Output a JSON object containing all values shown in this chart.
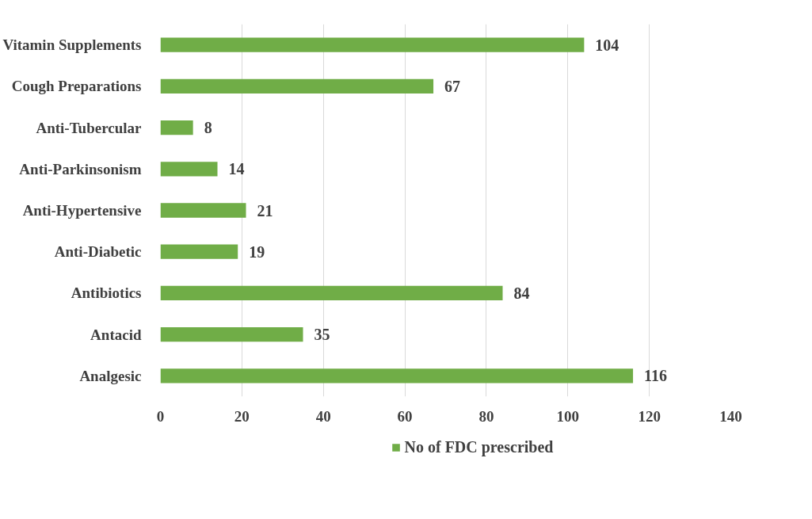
{
  "chart_data": {
    "type": "bar",
    "orientation": "horizontal",
    "categories": [
      "Vitamin Supplements",
      "Cough Preparations",
      "Anti-Tubercular",
      "Anti-Parkinsonism",
      "Anti-Hypertensive",
      "Anti-Diabetic",
      "Antibiotics",
      "Antacid",
      "Analgesic"
    ],
    "series": [
      {
        "name": "No of FDC prescribed",
        "color": "#70ad47",
        "values": [
          104,
          67,
          8,
          14,
          21,
          19,
          84,
          35,
          116
        ]
      }
    ],
    "xlim": [
      0,
      140
    ],
    "xticks": [
      0,
      20,
      40,
      60,
      80,
      100,
      120,
      140
    ],
    "grid": "x",
    "legend": "bottom",
    "data_labels": true
  }
}
